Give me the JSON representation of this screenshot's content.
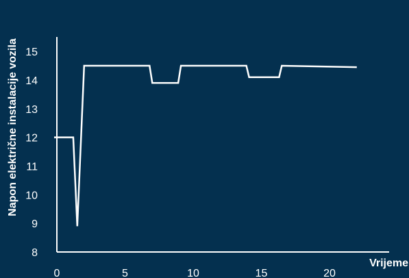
{
  "chart_data": {
    "type": "line",
    "title": "",
    "xlabel": "Vrijeme",
    "ylabel": "Napon električne instalacije vozila",
    "xlim": [
      0,
      24
    ],
    "ylim": [
      8,
      15.5
    ],
    "x_ticks": [
      0,
      5,
      10,
      15,
      20
    ],
    "y_ticks": [
      8,
      9,
      10,
      11,
      12,
      13,
      14,
      15
    ],
    "grid": false,
    "legend": "none",
    "colors": {
      "background": "#04304f",
      "line": "#ffffff",
      "axis": "#ffffff"
    },
    "series": [
      {
        "x": [
          -0.2,
          1.2,
          1.5,
          2.0,
          6.8,
          7.0,
          8.9,
          9.1,
          13.9,
          14.1,
          16.3,
          16.5,
          22.0
        ],
        "y": [
          12.0,
          12.0,
          8.9,
          14.5,
          14.5,
          13.9,
          13.9,
          14.5,
          14.5,
          14.1,
          14.1,
          14.5,
          14.45
        ]
      }
    ]
  }
}
